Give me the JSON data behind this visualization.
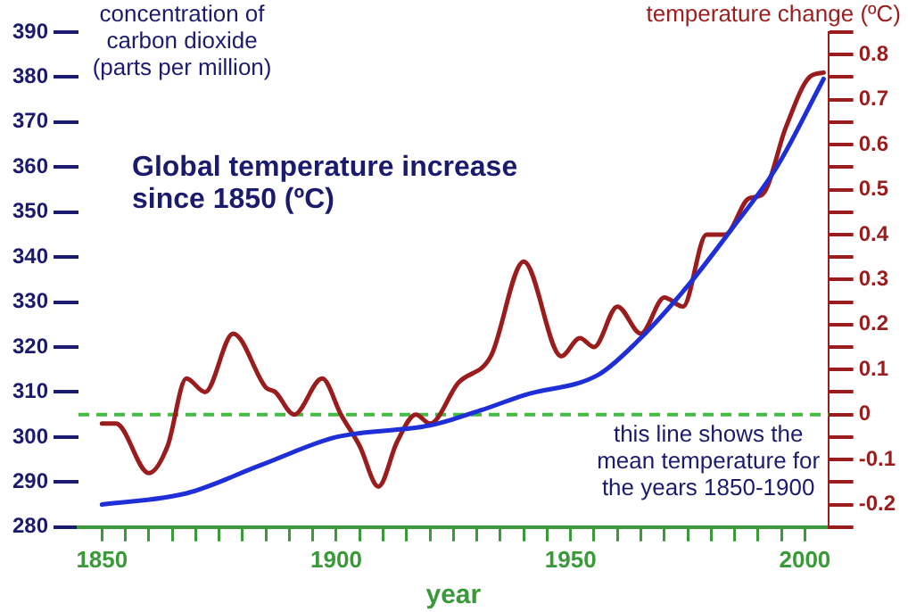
{
  "chart_data": {
    "type": "line",
    "title": "Global temperature increase since 1850 (ºC)",
    "ylabel": "concentration of carbon dioxide (parts per million)",
    "y2label": "temperature change (ºC)",
    "xlabel": "year",
    "xlim": [
      1845,
      2005
    ],
    "xticks": [
      1850,
      {
        "value": 1855,
        "label": null
      },
      {
        "value": 1860,
        "label": null
      },
      {
        "value": 1865,
        "label": null
      },
      {
        "value": 1870,
        "label": null
      },
      {
        "value": 1875,
        "label": null
      },
      {
        "value": 1880,
        "label": null
      },
      {
        "value": 1885,
        "label": null
      },
      {
        "value": 1890,
        "label": null
      },
      {
        "value": 1895,
        "label": null
      },
      1900,
      {
        "value": 1905,
        "label": null
      },
      {
        "value": 1910,
        "label": null
      },
      {
        "value": 1915,
        "label": null
      },
      {
        "value": 1920,
        "label": null
      },
      {
        "value": 1925,
        "label": null
      },
      {
        "value": 1930,
        "label": null
      },
      {
        "value": 1935,
        "label": null
      },
      {
        "value": 1940,
        "label": null
      },
      {
        "value": 1945,
        "label": null
      },
      1950,
      {
        "value": 1955,
        "label": null
      },
      {
        "value": 1960,
        "label": null
      },
      {
        "value": 1965,
        "label": null
      },
      {
        "value": 1970,
        "label": null
      },
      {
        "value": 1975,
        "label": null
      },
      {
        "value": 1980,
        "label": null
      },
      {
        "value": 1985,
        "label": null
      },
      {
        "value": 1990,
        "label": null
      },
      {
        "value": 1995,
        "label": null
      },
      2000
    ],
    "ylim": [
      280,
      390
    ],
    "yticks": [
      280,
      290,
      300,
      310,
      320,
      330,
      340,
      350,
      360,
      370,
      380,
      390
    ],
    "y2lim": [
      -0.25,
      0.85
    ],
    "y2ticks": [
      {
        "value": -0.25,
        "label": null
      },
      -0.2,
      {
        "value": -0.15,
        "label": null
      },
      -0.1,
      {
        "value": -0.05,
        "label": null
      },
      0.0,
      {
        "value": 0.05,
        "label": null
      },
      0.1,
      {
        "value": 0.15,
        "label": null
      },
      0.2,
      {
        "value": 0.25,
        "label": null
      },
      0.3,
      {
        "value": 0.35,
        "label": null
      },
      0.4,
      {
        "value": 0.45,
        "label": null
      },
      0.5,
      {
        "value": 0.55,
        "label": null
      },
      0.6,
      {
        "value": 0.65,
        "label": null
      },
      0.7,
      {
        "value": 0.75,
        "label": null
      },
      0.8,
      {
        "value": 0.85,
        "label": null
      }
    ],
    "series": [
      {
        "color": "#1f2fd8",
        "x": [
          1850,
          1868,
          1884,
          1900,
          1920,
          1931,
          1940,
          1956,
          1964,
          1975,
          1984,
          1994,
          2004
        ],
        "values": [
          285,
          287.5,
          293.8,
          300,
          302.6,
          306,
          309.3,
          313.9,
          321,
          333.6,
          345.7,
          360,
          379.6
        ]
      },
      {
        "color": "#9b1c1c",
        "axis": "y2",
        "x": [
          1850,
          1853,
          1860,
          1864,
          1868,
          1872,
          1878,
          1885,
          1887,
          1891,
          1897,
          1901,
          1905,
          1909,
          1913,
          1917,
          1920,
          1926,
          1933,
          1940,
          1948,
          1952,
          1955,
          1960,
          1965,
          1970,
          1974,
          1979,
          1983,
          1988,
          1991,
          1996,
          2001,
          2004
        ],
        "values": [
          -0.02,
          -0.02,
          -0.13,
          -0.07,
          0.08,
          0.05,
          0.18,
          0.06,
          0.05,
          0.0,
          0.08,
          0.0,
          -0.07,
          -0.16,
          -0.06,
          0.0,
          -0.02,
          0.07,
          0.13,
          0.34,
          0.13,
          0.17,
          0.15,
          0.24,
          0.18,
          0.26,
          0.24,
          0.4,
          0.4,
          0.48,
          0.49,
          0.64,
          0.75,
          0.76
        ]
      }
    ],
    "ref_lines": [
      {
        "axis": "y2",
        "value": 0.0,
        "label": "this line shows the mean temperature for the years 1850-1900",
        "color": "#44bb44",
        "line_style": "dashed"
      }
    ],
    "grid": false,
    "legend": false,
    "marker": "none",
    "line_style": "solid"
  }
}
